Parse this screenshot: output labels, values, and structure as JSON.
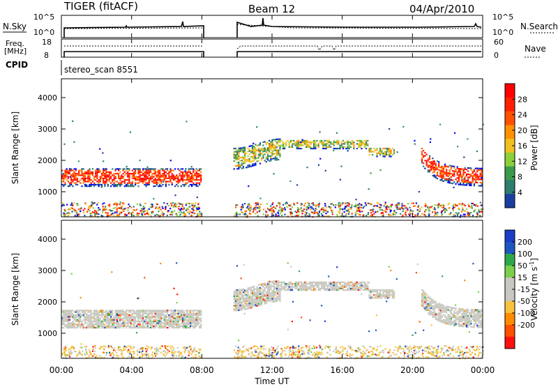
{
  "header": {
    "station": "TIGER (fitACF)",
    "beam": "Beam 12",
    "date": "04/Apr/2010"
  },
  "top_panels": {
    "nsky_label": "N.Sky",
    "nsky_ticks": [
      "10^5",
      "10^0"
    ],
    "nsearch_label": "N.Search",
    "nsearch_ticks": [
      "10^5",
      "10^0"
    ],
    "freq_label_1": "Freq.",
    "freq_label_2": "[MHz]",
    "freq_ticks": [
      "18",
      "8"
    ],
    "nave_label": "Nave",
    "nave_ticks": [
      "60",
      "0"
    ],
    "cpid_label": "CPID",
    "cpid_value": "stereo_scan 8551"
  },
  "colors": {
    "power_scale": [
      "#0000ff",
      "#1a3fa0",
      "#2e7d6e",
      "#3c9a4c",
      "#8ccf3a",
      "#f0c020",
      "#ff9000",
      "#ff5000",
      "#ff2000",
      "#ff0000"
    ],
    "velocity_scale": [
      "#1a3cc8",
      "#1e56c0",
      "#2fa84b",
      "#7ad04a",
      "#c8c8c0",
      "#c8c8c0",
      "#f7c23c",
      "#ff8c00",
      "#ff5000",
      "#ff1010"
    ],
    "ground_scatter": "#c8c8c0"
  },
  "chart_data": [
    {
      "type": "heatmap",
      "name": "power",
      "ylabel": "Slant Range [km]",
      "yticks": [
        "1000",
        "2000",
        "3000",
        "4000"
      ],
      "ylim": [
        200,
        4600
      ],
      "xlim": [
        0,
        24
      ],
      "colorbar_label": "Power [dB]",
      "colorbar_ticks": [
        "4",
        "8",
        "12",
        "16",
        "20",
        "24",
        "28"
      ],
      "colorbar_range": [
        0,
        32
      ],
      "data_gap_hours": [
        8.0,
        9.7
      ],
      "bands": [
        {
          "x": [
            0.0,
            8.0
          ],
          "y_center": 1500,
          "y_halfwidth": 300,
          "level": "high"
        },
        {
          "x": [
            9.8,
            12.5
          ],
          "y_center": 2250,
          "y_halfwidth": 350,
          "level": "mid"
        },
        {
          "x": [
            12.5,
            17.5
          ],
          "y_center": 2550,
          "y_halfwidth": 150,
          "level": "mid"
        },
        {
          "x": [
            17.5,
            19.0
          ],
          "y_center": 2300,
          "y_halfwidth": 150,
          "level": "mid"
        },
        {
          "x": [
            20.5,
            24.0
          ],
          "y_center": 1500,
          "y_halfwidth": 300,
          "level": "high"
        }
      ]
    },
    {
      "type": "heatmap",
      "name": "velocity",
      "ylabel": "Slant Range [km]",
      "yticks": [
        "1000",
        "2000",
        "3000",
        "4000"
      ],
      "ylim": [
        200,
        4600
      ],
      "xlabel": "Time UT",
      "xticks": [
        "00:00",
        "04:00",
        "08:00",
        "12:00",
        "16:00",
        "20:00",
        "00:00"
      ],
      "xlim": [
        0,
        24
      ],
      "colorbar_label": "Velocity [m s^-1]",
      "colorbar_ticks": [
        "200",
        "100",
        "50",
        "15",
        "-15",
        "-50",
        "-100",
        "-200"
      ],
      "data_gap_hours": [
        8.0,
        9.7
      ]
    }
  ]
}
